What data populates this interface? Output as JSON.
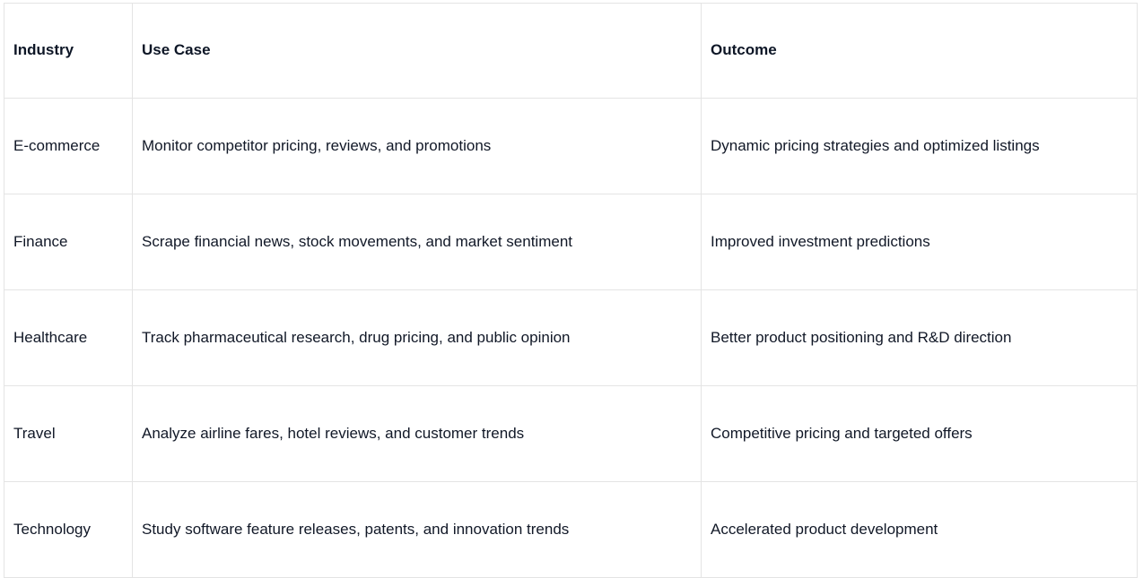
{
  "table": {
    "columns": [
      {
        "label": "Industry"
      },
      {
        "label": "Use Case"
      },
      {
        "label": "Outcome"
      }
    ],
    "rows": [
      {
        "industry": "E-commerce",
        "use_case": "Monitor competitor pricing, reviews, and promotions",
        "outcome": "Dynamic pricing strategies and optimized listings"
      },
      {
        "industry": "Finance",
        "use_case": "Scrape financial news, stock movements, and market sentiment",
        "outcome": "Improved investment predictions"
      },
      {
        "industry": "Healthcare",
        "use_case": "Track pharmaceutical research, drug pricing, and public opinion",
        "outcome": "Better product positioning and R&D direction"
      },
      {
        "industry": "Travel",
        "use_case": "Analyze airline fares, hotel reviews, and customer trends",
        "outcome": "Competitive pricing and targeted offers"
      },
      {
        "industry": "Technology",
        "use_case": "Study software feature releases, patents, and innovation trends",
        "outcome": "Accelerated product development"
      }
    ]
  },
  "colors": {
    "border": "#e4e4e4",
    "text": "#111827",
    "background": "#ffffff"
  }
}
